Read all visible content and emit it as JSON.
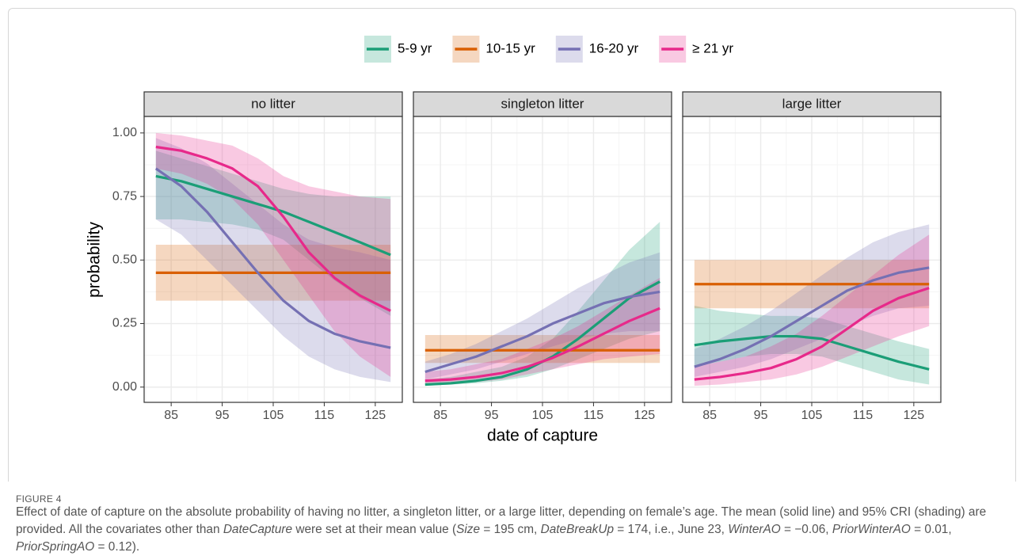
{
  "chart_data": {
    "type": "line",
    "xlabel": "date of capture",
    "ylabel": "probability",
    "legend_position": "top",
    "grid": true,
    "ribbon_opacity": 0.25,
    "xlim": [
      79.7,
      130.3
    ],
    "xticks": [
      85,
      95,
      105,
      115,
      125
    ],
    "x_minor_ticks": [
      80,
      90,
      100,
      110,
      120,
      130
    ],
    "ylim": [
      -0.06,
      1.065
    ],
    "yticks": [
      {
        "value": 0,
        "label": "0.00"
      },
      {
        "value": 0.25,
        "label": "0.25"
      },
      {
        "value": 0.5,
        "label": "0.50"
      },
      {
        "value": 0.75,
        "label": "0.75"
      },
      {
        "value": 1,
        "label": "1.00"
      }
    ],
    "y_minor_ticks": [
      0.125,
      0.375,
      0.625,
      0.875
    ],
    "x": [
      82,
      87,
      92,
      97,
      102,
      107,
      112,
      117,
      122,
      128
    ],
    "legend": [
      {
        "name": "5-9 yr",
        "color": "#1b9e77"
      },
      {
        "name": "10-15 yr",
        "color": "#d95f02"
      },
      {
        "name": "16-20 yr",
        "color": "#7570b3"
      },
      {
        "name": "≥ 21 yr",
        "color": "#e7298a"
      }
    ],
    "facets": [
      {
        "title": "no litter",
        "series": [
          {
            "values": [
              0.83,
              0.81,
              0.78,
              0.75,
              0.72,
              0.69,
              0.65,
              0.61,
              0.57,
              0.52
            ],
            "lower": [
              0.66,
              0.66,
              0.65,
              0.64,
              0.62,
              0.58,
              0.5,
              0.42,
              0.35,
              0.28
            ],
            "upper": [
              0.93,
              0.9,
              0.87,
              0.84,
              0.81,
              0.78,
              0.76,
              0.75,
              0.75,
              0.75
            ]
          },
          {
            "values": [
              0.45,
              0.45,
              0.45,
              0.45,
              0.45,
              0.45,
              0.45,
              0.45,
              0.45,
              0.45
            ],
            "lower": [
              0.34,
              0.34,
              0.34,
              0.34,
              0.34,
              0.34,
              0.34,
              0.34,
              0.34,
              0.34
            ],
            "upper": [
              0.56,
              0.56,
              0.56,
              0.56,
              0.56,
              0.56,
              0.56,
              0.56,
              0.56,
              0.56
            ]
          },
          {
            "values": [
              0.86,
              0.79,
              0.69,
              0.57,
              0.45,
              0.34,
              0.26,
              0.21,
              0.18,
              0.155
            ],
            "lower": [
              0.66,
              0.6,
              0.5,
              0.4,
              0.3,
              0.2,
              0.12,
              0.07,
              0.04,
              0.02
            ],
            "upper": [
              0.98,
              0.94,
              0.88,
              0.8,
              0.72,
              0.64,
              0.58,
              0.55,
              0.53,
              0.5
            ]
          },
          {
            "values": [
              0.945,
              0.93,
              0.9,
              0.86,
              0.79,
              0.67,
              0.53,
              0.43,
              0.36,
              0.3
            ],
            "lower": [
              0.86,
              0.84,
              0.8,
              0.74,
              0.64,
              0.5,
              0.36,
              0.22,
              0.12,
              0.04
            ],
            "upper": [
              1,
              0.99,
              0.97,
              0.95,
              0.9,
              0.83,
              0.79,
              0.77,
              0.75,
              0.74
            ]
          }
        ]
      },
      {
        "title": "singleton litter",
        "series": [
          {
            "values": [
              0.01,
              0.015,
              0.025,
              0.04,
              0.07,
              0.12,
              0.19,
              0.27,
              0.35,
              0.415
            ],
            "lower": [
              0.005,
              0.01,
              0.015,
              0.025,
              0.04,
              0.07,
              0.11,
              0.15,
              0.19,
              0.22
            ],
            "upper": [
              0.03,
              0.04,
              0.06,
              0.08,
              0.12,
              0.19,
              0.3,
              0.42,
              0.54,
              0.65
            ]
          },
          {
            "values": [
              0.145,
              0.145,
              0.145,
              0.145,
              0.145,
              0.145,
              0.145,
              0.145,
              0.145,
              0.145
            ],
            "lower": [
              0.095,
              0.095,
              0.095,
              0.095,
              0.095,
              0.095,
              0.095,
              0.095,
              0.095,
              0.095
            ],
            "upper": [
              0.205,
              0.205,
              0.205,
              0.205,
              0.205,
              0.205,
              0.205,
              0.205,
              0.205,
              0.205
            ]
          },
          {
            "values": [
              0.06,
              0.09,
              0.12,
              0.16,
              0.2,
              0.25,
              0.29,
              0.33,
              0.355,
              0.375
            ],
            "lower": [
              0.03,
              0.05,
              0.07,
              0.1,
              0.13,
              0.16,
              0.19,
              0.21,
              0.22,
              0.22
            ],
            "upper": [
              0.1,
              0.13,
              0.17,
              0.22,
              0.27,
              0.33,
              0.39,
              0.44,
              0.49,
              0.53
            ]
          },
          {
            "values": [
              0.025,
              0.03,
              0.04,
              0.055,
              0.08,
              0.115,
              0.16,
              0.21,
              0.26,
              0.31
            ],
            "lower": [
              0.01,
              0.015,
              0.02,
              0.03,
              0.05,
              0.07,
              0.09,
              0.11,
              0.12,
              0.13
            ],
            "upper": [
              0.06,
              0.07,
              0.09,
              0.11,
              0.15,
              0.19,
              0.24,
              0.3,
              0.36,
              0.43
            ]
          }
        ]
      },
      {
        "title": "large litter",
        "series": [
          {
            "values": [
              0.165,
              0.18,
              0.19,
              0.2,
              0.2,
              0.19,
              0.16,
              0.13,
              0.1,
              0.07
            ],
            "lower": [
              0.08,
              0.1,
              0.12,
              0.13,
              0.13,
              0.12,
              0.09,
              0.06,
              0.03,
              0.01
            ],
            "upper": [
              0.32,
              0.3,
              0.29,
              0.28,
              0.28,
              0.27,
              0.24,
              0.21,
              0.18,
              0.15
            ]
          },
          {
            "values": [
              0.405,
              0.405,
              0.405,
              0.405,
              0.405,
              0.405,
              0.405,
              0.405,
              0.405,
              0.405
            ],
            "lower": [
              0.31,
              0.31,
              0.31,
              0.31,
              0.31,
              0.31,
              0.31,
              0.31,
              0.31,
              0.31
            ],
            "upper": [
              0.5,
              0.5,
              0.5,
              0.5,
              0.5,
              0.5,
              0.5,
              0.5,
              0.5,
              0.5
            ]
          },
          {
            "values": [
              0.08,
              0.11,
              0.15,
              0.2,
              0.26,
              0.32,
              0.38,
              0.42,
              0.45,
              0.47
            ],
            "lower": [
              0.04,
              0.06,
              0.08,
              0.11,
              0.15,
              0.19,
              0.24,
              0.28,
              0.31,
              0.32
            ],
            "upper": [
              0.15,
              0.19,
              0.24,
              0.3,
              0.37,
              0.44,
              0.51,
              0.57,
              0.61,
              0.64
            ]
          },
          {
            "values": [
              0.03,
              0.04,
              0.055,
              0.075,
              0.11,
              0.16,
              0.23,
              0.3,
              0.35,
              0.39
            ],
            "lower": [
              0.005,
              0.01,
              0.02,
              0.03,
              0.05,
              0.08,
              0.12,
              0.16,
              0.2,
              0.24
            ],
            "upper": [
              0.08,
              0.1,
              0.12,
              0.16,
              0.21,
              0.28,
              0.36,
              0.44,
              0.52,
              0.6
            ]
          }
        ]
      }
    ]
  },
  "figure_label": "FIGURE 4",
  "caption": [
    {
      "text": "Effect of date of capture on the absolute probability of having no litter, a singleton litter, or a large litter, depending on female’s age. The mean (solid line) and 95% CRI (shading) are provided. All the covariates other than ",
      "italic": false
    },
    {
      "text": "DateCapture",
      "italic": true
    },
    {
      "text": " were set at their mean value (",
      "italic": false
    },
    {
      "text": "Size",
      "italic": true
    },
    {
      "text": " = 195 cm, ",
      "italic": false
    },
    {
      "text": "DateBreakUp",
      "italic": true
    },
    {
      "text": " = 174, i.e., June 23, ",
      "italic": false
    },
    {
      "text": "WinterAO",
      "italic": true
    },
    {
      "text": " = −0.06, ",
      "italic": false
    },
    {
      "text": "PriorWinterAO",
      "italic": true
    },
    {
      "text": " = 0.01, ",
      "italic": false
    },
    {
      "text": "PriorSpringAO",
      "italic": true
    },
    {
      "text": " = 0.12).",
      "italic": false
    }
  ]
}
